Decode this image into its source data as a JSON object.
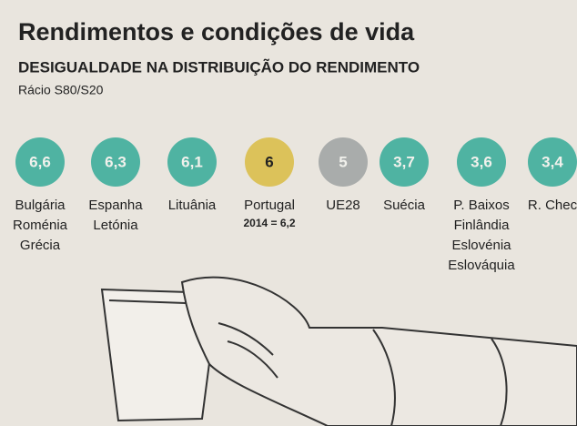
{
  "chart_data": {
    "type": "dot-row",
    "title": "Rendimentos e condições de vida",
    "subtitle": "DESIGUALDADE NA DISTRIBUIÇÃO DO RENDIMENTO",
    "caption": "Rácio S80/S20",
    "categories": [
      [
        "Bulgária",
        "Roménia",
        "Grécia"
      ],
      [
        "Espanha",
        "Letónia"
      ],
      [
        "Lituânia"
      ],
      [
        "Portugal"
      ],
      [
        "UE28"
      ],
      [
        "Suécia"
      ],
      [
        "P. Baixos",
        "Finlândia",
        "Eslovénia",
        "Eslováquia"
      ],
      [
        "R. Chec"
      ]
    ],
    "values": [
      6.6,
      6.3,
      6.1,
      6,
      5,
      3.7,
      3.6,
      3.4
    ],
    "value_labels": [
      "6,6",
      "6,3",
      "6,1",
      "6",
      "5",
      "3,7",
      "3,6",
      "3,4"
    ],
    "colors": [
      "#4fb3a2",
      "#4fb3a2",
      "#4fb3a2",
      "#dcc25a",
      "#a9acab",
      "#4fb3a2",
      "#4fb3a2",
      "#4fb3a2"
    ],
    "annotations": [
      {
        "index": 3,
        "text": "2014 = 6,2"
      }
    ]
  }
}
